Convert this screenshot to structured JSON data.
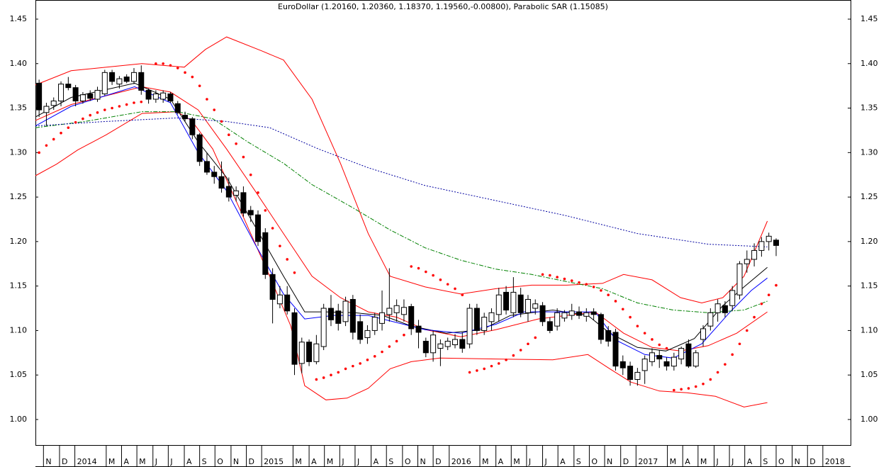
{
  "chart_data": {
    "type": "candlestick",
    "title": "EuroDollar (1.20160, 1.20360, 1.18370, 1.19560,-0.00800), Parabolic SAR (1.15085)",
    "xlim": [
      -0.5,
      111.2
    ],
    "ylim": [
      0.9713,
      1.4715
    ],
    "yticks": [
      {
        "value": 1,
        "label": "1.00"
      },
      1.05,
      {
        "value": 1.1,
        "label": "1.10"
      },
      1.15,
      {
        "value": 1.2,
        "label": "1.20"
      },
      1.25,
      {
        "value": 1.3,
        "label": "1.30"
      },
      1.35,
      {
        "value": 1.4,
        "label": "1.40"
      },
      1.45
    ],
    "xticks": [
      {
        "value": 0.6,
        "label": "N"
      },
      {
        "value": 2.8,
        "label": "D"
      },
      {
        "value": 4.9,
        "label": "2014"
      },
      {
        "value": 9.2,
        "label": "M"
      },
      {
        "value": 11.3,
        "label": "A"
      },
      {
        "value": 13.4,
        "label": "M"
      },
      {
        "value": 15.6,
        "label": "J"
      },
      {
        "value": 17.7,
        "label": "J"
      },
      {
        "value": 19.9,
        "label": "A"
      },
      {
        "value": 22.0,
        "label": "S"
      },
      {
        "value": 24.1,
        "label": "O"
      },
      {
        "value": 26.3,
        "label": "N"
      },
      {
        "value": 28.4,
        "label": "D"
      },
      {
        "value": 30.5,
        "label": "2015"
      },
      {
        "value": 34.8,
        "label": "M"
      },
      {
        "value": 37.0,
        "label": "A"
      },
      {
        "value": 39.1,
        "label": "M"
      },
      {
        "value": 41.2,
        "label": "J"
      },
      {
        "value": 43.3,
        "label": "J"
      },
      {
        "value": 45.5,
        "label": "A"
      },
      {
        "value": 47.6,
        "label": "S"
      },
      {
        "value": 49.8,
        "label": "O"
      },
      {
        "value": 51.9,
        "label": "N"
      },
      {
        "value": 54.0,
        "label": "D"
      },
      {
        "value": 56.2,
        "label": "2016"
      },
      {
        "value": 60.4,
        "label": "M"
      },
      {
        "value": 62.6,
        "label": "A"
      },
      {
        "value": 64.7,
        "label": "M"
      },
      {
        "value": 66.8,
        "label": "J"
      },
      {
        "value": 69.0,
        "label": "J"
      },
      {
        "value": 71.1,
        "label": "A"
      },
      {
        "value": 73.3,
        "label": "S"
      },
      {
        "value": 75.4,
        "label": "O"
      },
      {
        "value": 77.5,
        "label": "N"
      },
      {
        "value": 79.7,
        "label": "D"
      },
      {
        "value": 81.8,
        "label": "2017"
      },
      {
        "value": 86.1,
        "label": "M"
      },
      {
        "value": 88.2,
        "label": "A"
      },
      {
        "value": 90.3,
        "label": "M"
      },
      {
        "value": 92.5,
        "label": "J"
      },
      {
        "value": 94.6,
        "label": "J"
      },
      {
        "value": 96.7,
        "label": "A"
      },
      {
        "value": 98.9,
        "label": "S"
      },
      {
        "value": 101.0,
        "label": "O"
      },
      {
        "value": 103.2,
        "label": "N"
      },
      {
        "value": 105.3,
        "label": "D"
      },
      {
        "value": 107.4,
        "label": "2018"
      }
    ],
    "x": [
      0,
      1,
      2,
      3,
      4,
      5,
      6,
      7,
      8,
      9,
      10,
      11,
      12,
      13,
      14,
      15,
      16,
      17,
      18,
      19,
      20,
      21,
      22,
      23,
      24,
      25,
      26,
      27,
      28,
      29,
      30,
      31,
      32,
      33,
      34,
      35,
      36,
      37,
      38,
      39,
      40,
      41,
      42,
      43,
      44,
      45,
      46,
      47,
      48,
      49,
      50,
      51,
      52,
      53,
      54,
      55,
      56,
      57,
      58,
      59,
      60,
      61,
      62,
      63,
      64,
      65,
      66,
      67,
      68,
      69,
      70,
      71,
      72,
      73,
      74,
      75,
      76,
      77,
      78,
      79,
      80,
      81,
      82,
      83,
      84,
      85,
      86,
      87,
      88,
      89,
      90,
      91,
      92,
      93,
      94,
      95,
      96,
      97,
      98,
      99,
      100,
      101
    ],
    "open": [
      1.378,
      1.345,
      1.353,
      1.358,
      1.377,
      1.373,
      1.358,
      1.366,
      1.36,
      1.366,
      1.39,
      1.377,
      1.385,
      1.38,
      1.39,
      1.37,
      1.36,
      1.36,
      1.366,
      1.355,
      1.342,
      1.338,
      1.32,
      1.29,
      1.278,
      1.273,
      1.262,
      1.252,
      1.255,
      1.235,
      1.23,
      1.21,
      1.163,
      1.13,
      1.14,
      1.12,
      1.063,
      1.087,
      1.065,
      1.082,
      1.125,
      1.122,
      1.11,
      1.135,
      1.11,
      1.092,
      1.1,
      1.108,
      1.118,
      1.12,
      1.118,
      1.127,
      1.105,
      1.088,
      1.075,
      1.08,
      1.082,
      1.084,
      1.09,
      1.085,
      1.125,
      1.1,
      1.11,
      1.118,
      1.143,
      1.12,
      1.14,
      1.12,
      1.125,
      1.128,
      1.11,
      1.105,
      1.114,
      1.117,
      1.121,
      1.116,
      1.121,
      1.118,
      1.1,
      1.098,
      1.065,
      1.06,
      1.045,
      1.055,
      1.065,
      1.072,
      1.065,
      1.06,
      1.068,
      1.085,
      1.06,
      1.09,
      1.105,
      1.12,
      1.128,
      1.128,
      1.14,
      1.175,
      1.18,
      1.19,
      1.2,
      1.2016
    ],
    "high": [
      1.382,
      1.356,
      1.362,
      1.38,
      1.385,
      1.376,
      1.368,
      1.37,
      1.374,
      1.393,
      1.393,
      1.386,
      1.388,
      1.395,
      1.398,
      1.372,
      1.37,
      1.37,
      1.368,
      1.358,
      1.346,
      1.34,
      1.322,
      1.3,
      1.285,
      1.29,
      1.272,
      1.262,
      1.262,
      1.24,
      1.235,
      1.215,
      1.17,
      1.15,
      1.15,
      1.125,
      1.092,
      1.09,
      1.095,
      1.13,
      1.14,
      1.13,
      1.138,
      1.14,
      1.118,
      1.106,
      1.12,
      1.145,
      1.17,
      1.135,
      1.135,
      1.13,
      1.112,
      1.092,
      1.1,
      1.09,
      1.092,
      1.096,
      1.098,
      1.13,
      1.13,
      1.12,
      1.125,
      1.148,
      1.15,
      1.16,
      1.148,
      1.14,
      1.135,
      1.132,
      1.115,
      1.125,
      1.123,
      1.13,
      1.127,
      1.125,
      1.125,
      1.12,
      1.105,
      1.102,
      1.072,
      1.065,
      1.058,
      1.072,
      1.08,
      1.078,
      1.07,
      1.075,
      1.082,
      1.09,
      1.078,
      1.106,
      1.125,
      1.135,
      1.133,
      1.15,
      1.178,
      1.19,
      1.198,
      1.205,
      1.21,
      1.2036
    ],
    "low": [
      1.34,
      1.33,
      1.348,
      1.352,
      1.37,
      1.352,
      1.355,
      1.358,
      1.357,
      1.364,
      1.376,
      1.372,
      1.378,
      1.377,
      1.365,
      1.355,
      1.356,
      1.356,
      1.356,
      1.343,
      1.335,
      1.315,
      1.285,
      1.275,
      1.265,
      1.255,
      1.245,
      1.245,
      1.228,
      1.222,
      1.195,
      1.158,
      1.108,
      1.125,
      1.118,
      1.05,
      1.052,
      1.06,
      1.062,
      1.078,
      1.105,
      1.1,
      1.105,
      1.09,
      1.085,
      1.085,
      1.095,
      1.1,
      1.11,
      1.11,
      1.11,
      1.095,
      1.08,
      1.07,
      1.065,
      1.06,
      1.078,
      1.08,
      1.075,
      1.08,
      1.095,
      1.095,
      1.1,
      1.11,
      1.118,
      1.115,
      1.115,
      1.11,
      1.118,
      1.105,
      1.097,
      1.1,
      1.11,
      1.112,
      1.113,
      1.11,
      1.112,
      1.085,
      1.082,
      1.055,
      1.05,
      1.038,
      1.038,
      1.04,
      1.06,
      1.058,
      1.055,
      1.055,
      1.062,
      1.058,
      1.058,
      1.082,
      1.1,
      1.11,
      1.115,
      1.122,
      1.135,
      1.165,
      1.172,
      1.183,
      1.19,
      1.1837
    ],
    "close": [
      1.348,
      1.352,
      1.358,
      1.377,
      1.373,
      1.358,
      1.365,
      1.361,
      1.37,
      1.39,
      1.38,
      1.383,
      1.38,
      1.39,
      1.37,
      1.36,
      1.366,
      1.367,
      1.358,
      1.345,
      1.338,
      1.32,
      1.29,
      1.278,
      1.273,
      1.26,
      1.25,
      1.257,
      1.232,
      1.23,
      1.2,
      1.163,
      1.135,
      1.14,
      1.122,
      1.062,
      1.087,
      1.065,
      1.085,
      1.125,
      1.112,
      1.108,
      1.133,
      1.098,
      1.09,
      1.1,
      1.115,
      1.12,
      1.125,
      1.128,
      1.126,
      1.102,
      1.098,
      1.075,
      1.095,
      1.085,
      1.088,
      1.09,
      1.08,
      1.125,
      1.1,
      1.115,
      1.12,
      1.14,
      1.123,
      1.143,
      1.12,
      1.135,
      1.13,
      1.11,
      1.1,
      1.12,
      1.12,
      1.122,
      1.117,
      1.12,
      1.118,
      1.09,
      1.088,
      1.06,
      1.058,
      1.045,
      1.053,
      1.068,
      1.075,
      1.068,
      1.06,
      1.07,
      1.08,
      1.06,
      1.075,
      1.102,
      1.12,
      1.13,
      1.12,
      1.145,
      1.175,
      1.18,
      1.19,
      1.2,
      1.206,
      1.1956
    ],
    "up_color": "#ffffff",
    "down_color": "#000000",
    "lines": [
      {
        "color": "#ff0000",
        "style": "solid",
        "x": [
          -0.5,
          4.4,
          14.1,
          19.9,
          22.8,
          25.7,
          30.6,
          33.5,
          37.4,
          41.3,
          45.1,
          48.1,
          52.9,
          57.8,
          62.6,
          67.5,
          72.3,
          77.2,
          80.1,
          84.0,
          87.9,
          90.8,
          93.7,
          96.6,
          99.8
        ],
        "values": [
          1.376,
          1.392,
          1.4,
          1.396,
          1.416,
          1.43,
          1.414,
          1.404,
          1.36,
          1.288,
          1.209,
          1.161,
          1.149,
          1.141,
          1.147,
          1.151,
          1.151,
          1.153,
          1.163,
          1.157,
          1.137,
          1.131,
          1.137,
          1.161,
          1.223
        ]
      },
      {
        "color": "#ff0000",
        "style": "solid",
        "x": [
          -0.5,
          2.4,
          5.3,
          9.2,
          14.1,
          18.9,
          20.9,
          23.8,
          27.7,
          31.6,
          34.5,
          36.4,
          39.3,
          42.2,
          45.1,
          48.1,
          51.0,
          54.9,
          62.6,
          70.4,
          75.2,
          78.2,
          81.1,
          85.0,
          88.8,
          92.7,
          96.6,
          99.8
        ],
        "values": [
          1.274,
          1.287,
          1.303,
          1.32,
          1.344,
          1.346,
          1.336,
          1.304,
          1.233,
          1.161,
          1.105,
          1.038,
          1.022,
          1.024,
          1.035,
          1.057,
          1.065,
          1.069,
          1.068,
          1.067,
          1.073,
          1.057,
          1.042,
          1.032,
          1.03,
          1.026,
          1.014,
          1.019
        ]
      },
      {
        "color": "#ff0000",
        "style": "solid",
        "x": [
          -0.5,
          4.4,
          14.1,
          18.0,
          21.8,
          25.7,
          29.6,
          33.5,
          37.4,
          41.3,
          45.1,
          49.0,
          52.9,
          57.8,
          62.6,
          68.4,
          72.3,
          76.2,
          80.1,
          84.0,
          87.9,
          91.7,
          95.6,
          99.8
        ],
        "values": [
          1.336,
          1.354,
          1.374,
          1.368,
          1.348,
          1.304,
          1.257,
          1.209,
          1.161,
          1.137,
          1.121,
          1.115,
          1.101,
          1.093,
          1.101,
          1.113,
          1.117,
          1.121,
          1.097,
          1.081,
          1.077,
          1.083,
          1.097,
          1.121
        ]
      },
      {
        "color": "#000000",
        "style": "solid",
        "x": [
          -0.5,
          4.4,
          13.1,
          18.0,
          21.8,
          25.7,
          29.6,
          33.5,
          36.4,
          39.3,
          43.2,
          47.1,
          51.0,
          55.8,
          60.7,
          64.6,
          70.4,
          75.2,
          78.2,
          82.0,
          85.9,
          89.8,
          93.7,
          96.6,
          99.8
        ],
        "values": [
          1.34,
          1.362,
          1.378,
          1.36,
          1.312,
          1.272,
          1.217,
          1.161,
          1.121,
          1.121,
          1.12,
          1.117,
          1.105,
          1.097,
          1.101,
          1.117,
          1.123,
          1.117,
          1.097,
          1.081,
          1.077,
          1.091,
          1.128,
          1.149,
          1.171
        ]
      },
      {
        "color": "#0000ff",
        "style": "solid",
        "x": [
          -0.5,
          4.4,
          13.1,
          18.0,
          21.8,
          25.7,
          29.6,
          33.5,
          36.4,
          40.3,
          45.1,
          49.0,
          52.9,
          57.8,
          62.6,
          66.5,
          71.4,
          76.2,
          79.1,
          83.0,
          86.9,
          90.8,
          94.7,
          97.6,
          99.8
        ],
        "values": [
          1.33,
          1.352,
          1.374,
          1.356,
          1.3,
          1.257,
          1.197,
          1.141,
          1.113,
          1.117,
          1.117,
          1.109,
          1.101,
          1.097,
          1.107,
          1.121,
          1.121,
          1.121,
          1.089,
          1.073,
          1.069,
          1.085,
          1.121,
          1.145,
          1.159
        ]
      },
      {
        "color": "#008000",
        "style": "dashdot",
        "x": [
          -0.5,
          6.3,
          14.1,
          18.9,
          23.8,
          28.6,
          33.5,
          37.4,
          43.2,
          48.1,
          52.9,
          57.8,
          62.6,
          67.5,
          72.3,
          77.2,
          82.0,
          86.9,
          91.7,
          96.6,
          99.8
        ],
        "values": [
          1.328,
          1.335,
          1.346,
          1.346,
          1.338,
          1.312,
          1.288,
          1.264,
          1.237,
          1.213,
          1.193,
          1.179,
          1.169,
          1.163,
          1.155,
          1.147,
          1.131,
          1.123,
          1.12,
          1.123,
          1.133
        ]
      },
      {
        "color": "#0000a0",
        "style": "dotted",
        "x": [
          -0.5,
          9.2,
          18.9,
          25.7,
          31.6,
          38.3,
          45.1,
          52.9,
          62.6,
          72.3,
          82.0,
          91.7,
          99.8
        ],
        "values": [
          1.33,
          1.335,
          1.339,
          1.335,
          1.328,
          1.304,
          1.283,
          1.263,
          1.246,
          1.229,
          1.209,
          1.197,
          1.194
        ]
      }
    ],
    "sar": {
      "color": "#ff0000",
      "x": [
        0,
        1,
        2,
        3,
        4,
        5,
        6,
        7,
        8,
        9,
        10,
        11,
        12,
        13,
        14,
        16,
        17,
        18,
        19,
        20,
        21,
        22,
        23,
        24,
        25,
        26,
        27,
        28,
        29,
        30,
        31,
        32,
        33,
        34,
        35,
        38,
        39,
        40,
        41,
        42,
        43,
        44,
        45,
        46,
        47,
        48,
        49,
        50,
        51,
        52,
        53,
        54,
        55,
        56,
        57,
        58,
        59,
        60,
        61,
        62,
        63,
        64,
        65,
        66,
        67,
        68,
        69,
        70,
        71,
        72,
        73,
        74,
        75,
        76,
        77,
        78,
        79,
        80,
        81,
        82,
        83,
        84,
        85,
        86,
        87,
        88,
        89,
        90,
        91,
        92,
        93,
        94,
        95,
        96,
        97,
        98,
        99,
        100,
        101
      ],
      "values": [
        1.3,
        1.308,
        1.315,
        1.322,
        1.328,
        1.334,
        1.338,
        1.342,
        1.345,
        1.348,
        1.35,
        1.352,
        1.354,
        1.356,
        1.357,
        1.4,
        1.4,
        1.398,
        1.395,
        1.39,
        1.385,
        1.375,
        1.36,
        1.348,
        1.335,
        1.32,
        1.31,
        1.295,
        1.275,
        1.255,
        1.235,
        1.215,
        1.195,
        1.18,
        1.165,
        1.045,
        1.047,
        1.05,
        1.053,
        1.057,
        1.06,
        1.063,
        1.067,
        1.071,
        1.076,
        1.082,
        1.088,
        1.095,
        1.172,
        1.17,
        1.166,
        1.162,
        1.157,
        1.152,
        1.147,
        1.14,
        1.053,
        1.055,
        1.057,
        1.06,
        1.063,
        1.067,
        1.072,
        1.078,
        1.085,
        1.092,
        1.163,
        1.162,
        1.16,
        1.158,
        1.156,
        1.154,
        1.152,
        1.149,
        1.145,
        1.14,
        1.133,
        1.124,
        1.115,
        1.105,
        1.097,
        1.09,
        1.084,
        1.08,
        1.033,
        1.034,
        1.035,
        1.037,
        1.04,
        1.045,
        1.053,
        1.062,
        1.073,
        1.085,
        1.1,
        1.115,
        1.13,
        1.14,
        1.15085
      ]
    }
  }
}
